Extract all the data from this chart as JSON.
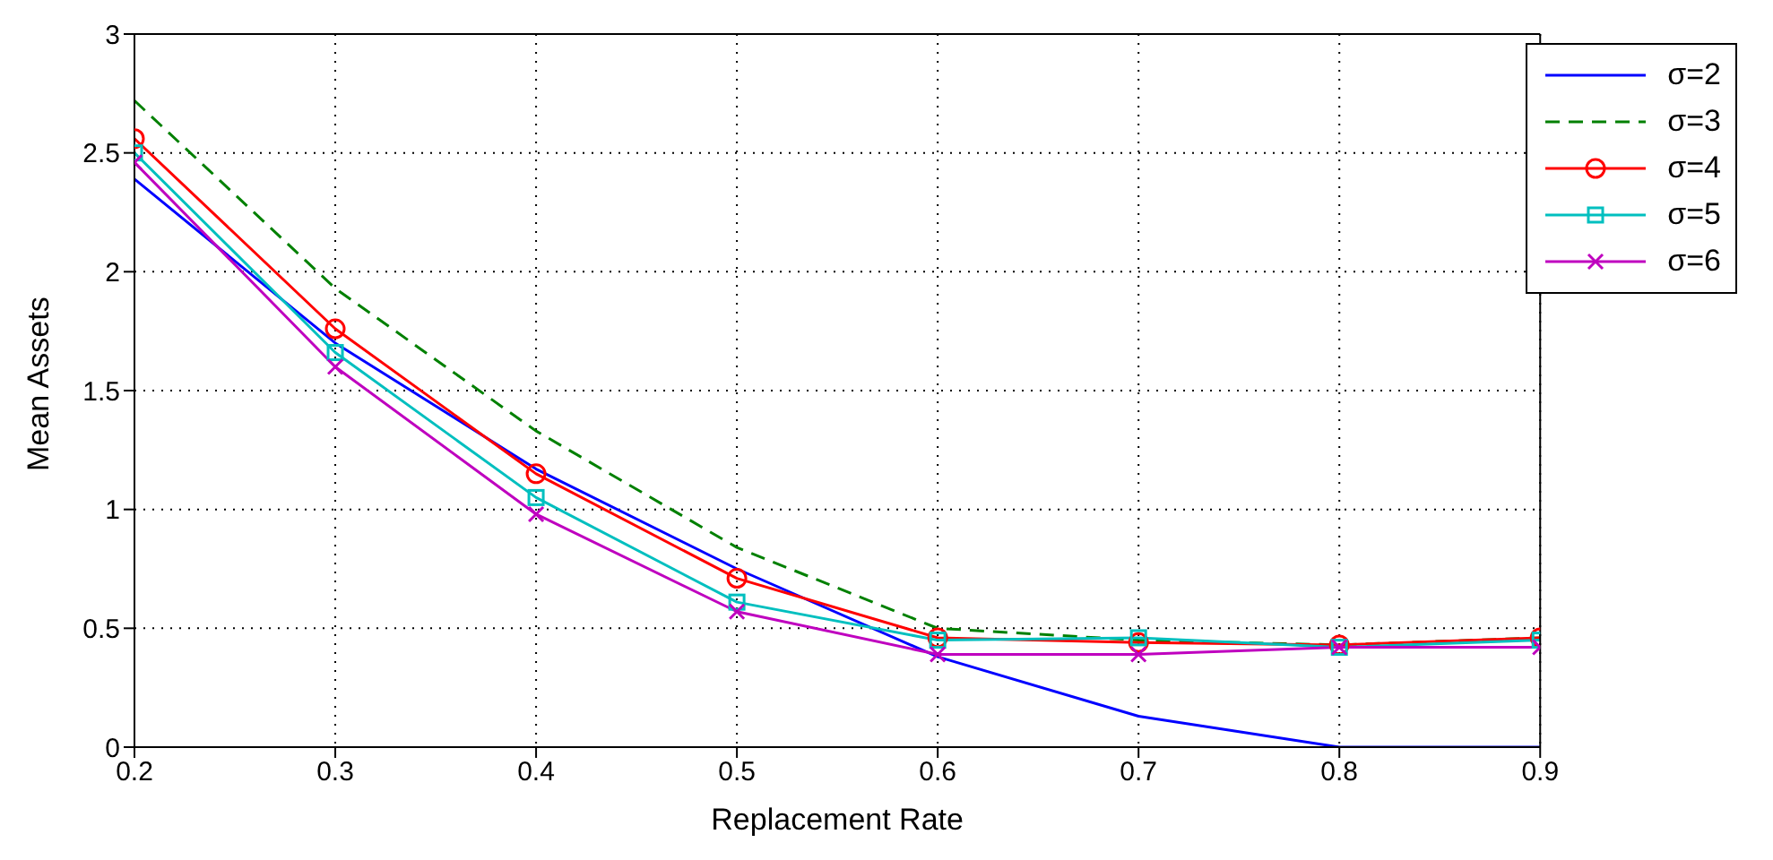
{
  "chart_data": {
    "type": "line",
    "xlabel": "Replacement Rate",
    "ylabel": "Mean Assets",
    "x": [
      0.2,
      0.3,
      0.4,
      0.5,
      0.6,
      0.7,
      0.8,
      0.9
    ],
    "series": [
      {
        "name": "σ=2",
        "color": "#0000ff",
        "marker": "none",
        "line_style": "solid",
        "values": [
          2.39,
          1.7,
          1.17,
          0.75,
          0.38,
          0.13,
          0,
          0
        ]
      },
      {
        "name": "σ=3",
        "color": "#008000",
        "marker": "none",
        "line_style": "dashed",
        "values": [
          2.72,
          1.93,
          1.33,
          0.84,
          0.5,
          0.45,
          0.43,
          0.46
        ]
      },
      {
        "name": "σ=4",
        "color": "#ff0000",
        "marker": "circle",
        "line_style": "solid",
        "values": [
          2.56,
          1.76,
          1.15,
          0.71,
          0.46,
          0.44,
          0.43,
          0.46
        ]
      },
      {
        "name": "σ=5",
        "color": "#00bfbf",
        "marker": "square",
        "line_style": "solid",
        "values": [
          2.5,
          1.66,
          1.05,
          0.61,
          0.45,
          0.46,
          0.42,
          0.45
        ]
      },
      {
        "name": "σ=6",
        "color": "#bf00bf",
        "marker": "cross",
        "line_style": "solid",
        "values": [
          2.46,
          1.6,
          0.98,
          0.57,
          0.39,
          0.39,
          0.42,
          0.42
        ]
      }
    ],
    "xlim": [
      0.2,
      0.9
    ],
    "xticks": [
      0.2,
      0.3,
      0.4,
      0.5,
      0.6,
      0.7,
      0.8,
      0.9
    ],
    "ylim": [
      0,
      3
    ],
    "yticks": [
      0,
      0.5,
      1,
      1.5,
      2,
      2.5,
      3
    ],
    "grid": true,
    "legend": "top right"
  }
}
